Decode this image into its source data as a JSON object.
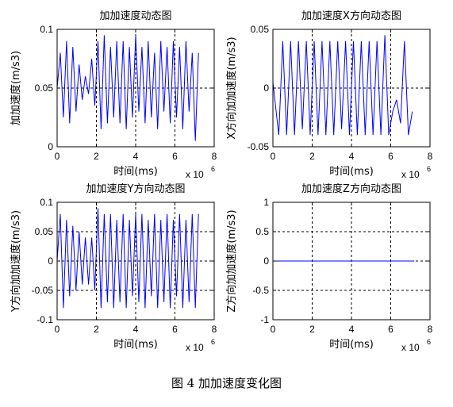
{
  "figure_caption": "图 4  加加速度变化图",
  "chart_data": [
    {
      "type": "line",
      "title": "加加速度动态图",
      "xlabel": "时间(ms)",
      "ylabel": "加加速度(m/s3)",
      "x_multiplier": "x 10",
      "x_multiplier_exp": "6",
      "xlim": [
        0,
        8
      ],
      "ylim": [
        0,
        0.1
      ],
      "xticks": [
        "0",
        "2",
        "4",
        "6",
        "8"
      ],
      "yticks": [
        "0",
        "0.05",
        "0.1"
      ],
      "grid": true,
      "color": "#0000ff",
      "x": [
        0,
        0.16,
        0.32,
        0.48,
        0.64,
        0.8,
        0.96,
        1.12,
        1.28,
        1.44,
        1.6,
        1.76,
        1.92,
        2.08,
        2.24,
        2.4,
        2.56,
        2.72,
        2.88,
        3.04,
        3.2,
        3.36,
        3.52,
        3.68,
        3.84,
        4.0,
        4.16,
        4.32,
        4.48,
        4.64,
        4.8,
        4.96,
        5.12,
        5.28,
        5.44,
        5.6,
        5.76,
        5.92,
        6.08,
        6.24,
        6.4,
        6.56,
        6.72,
        6.88,
        7.04,
        7.2
      ],
      "y": [
        0.05,
        0.08,
        0.025,
        0.09,
        0.02,
        0.085,
        0.03,
        0.07,
        0.04,
        0.06,
        0.045,
        0.075,
        0.035,
        0.09,
        0.015,
        0.095,
        0.02,
        0.085,
        0.025,
        0.09,
        0.02,
        0.09,
        0.015,
        0.085,
        0.025,
        0.095,
        0.03,
        0.085,
        0.02,
        0.09,
        0.025,
        0.08,
        0.015,
        0.09,
        0.03,
        0.085,
        0.02,
        0.09,
        0.025,
        0.085,
        0.015,
        0.09,
        0.03,
        0.08,
        0.005,
        0.08
      ]
    },
    {
      "type": "line",
      "title": "加加速度X方向动态图",
      "xlabel": "时间(ms)",
      "ylabel": "X方向加加速度(m/s3)",
      "x_multiplier": "x 10",
      "x_multiplier_exp": "6",
      "xlim": [
        0,
        8
      ],
      "ylim": [
        -0.05,
        0.05
      ],
      "xticks": [
        "0",
        "2",
        "4",
        "6",
        "8"
      ],
      "yticks": [
        "-0.05",
        "0",
        "0.05"
      ],
      "grid": true,
      "color": "#0000ff",
      "x": [
        0,
        0.3,
        0.5,
        0.7,
        0.9,
        1.1,
        1.3,
        1.5,
        1.7,
        1.9,
        2.1,
        2.3,
        2.5,
        2.7,
        2.9,
        3.1,
        3.3,
        3.5,
        3.7,
        3.9,
        4.1,
        4.3,
        4.5,
        4.7,
        4.9,
        5.1,
        5.3,
        5.5,
        5.7,
        5.9,
        6.1,
        6.3,
        6.5,
        6.7,
        6.9,
        7.1
      ],
      "y": [
        0.005,
        -0.04,
        0.04,
        -0.04,
        0.04,
        -0.04,
        0.04,
        -0.035,
        0.04,
        -0.04,
        0.04,
        -0.04,
        0.04,
        -0.04,
        0.04,
        -0.04,
        0.04,
        -0.035,
        0.04,
        -0.04,
        0.04,
        -0.04,
        0.04,
        -0.04,
        0.04,
        -0.04,
        0.04,
        -0.04,
        0.045,
        -0.04,
        -0.02,
        -0.01,
        -0.03,
        0.04,
        -0.04,
        -0.02
      ]
    },
    {
      "type": "line",
      "title": "加加速度Y方向动态图",
      "xlabel": "时间(ms)",
      "ylabel": "Y方向加加速度(m/s3)",
      "x_multiplier": "x 10",
      "x_multiplier_exp": "6",
      "xlim": [
        0,
        8
      ],
      "ylim": [
        -0.1,
        0.1
      ],
      "xticks": [
        "0",
        "2",
        "4",
        "6",
        "8"
      ],
      "yticks": [
        "-0.1",
        "-0.05",
        "0",
        "0.05",
        "0.1"
      ],
      "grid": true,
      "color": "#0000ff",
      "x": [
        0,
        0.16,
        0.32,
        0.48,
        0.64,
        0.8,
        0.96,
        1.12,
        1.28,
        1.44,
        1.6,
        1.76,
        1.92,
        2.08,
        2.24,
        2.4,
        2.56,
        2.72,
        2.88,
        3.04,
        3.2,
        3.36,
        3.52,
        3.68,
        3.84,
        4.0,
        4.16,
        4.32,
        4.48,
        4.64,
        4.8,
        4.96,
        5.12,
        5.28,
        5.44,
        5.6,
        5.76,
        5.92,
        6.08,
        6.24,
        6.4,
        6.56,
        6.72,
        6.88,
        7.04,
        7.2
      ],
      "y": [
        0.0,
        0.08,
        -0.08,
        0.07,
        -0.06,
        0.06,
        -0.05,
        0.05,
        -0.04,
        0.04,
        -0.04,
        0.04,
        -0.05,
        0.09,
        -0.08,
        0.08,
        -0.07,
        0.08,
        -0.08,
        0.07,
        -0.07,
        0.08,
        -0.08,
        0.07,
        -0.06,
        0.08,
        -0.07,
        0.08,
        -0.08,
        0.07,
        -0.06,
        0.08,
        -0.08,
        0.07,
        -0.07,
        0.08,
        -0.08,
        0.07,
        -0.06,
        0.08,
        -0.08,
        0.07,
        -0.07,
        0.08,
        -0.08,
        0.08
      ]
    },
    {
      "type": "line",
      "title": "加加速度Z方向动态图",
      "xlabel": "时间(ms)",
      "ylabel": "Z方向加加速度(m/s3)",
      "x_multiplier": "x 10",
      "x_multiplier_exp": "6",
      "xlim": [
        0,
        8
      ],
      "ylim": [
        -1,
        1
      ],
      "xticks": [
        "0",
        "2",
        "4",
        "6",
        "8"
      ],
      "yticks": [
        "-1",
        "-0.5",
        "0",
        "0.5",
        "1"
      ],
      "grid": true,
      "color": "#0000ff",
      "x": [
        0,
        7.2
      ],
      "y": [
        0,
        0
      ]
    }
  ]
}
